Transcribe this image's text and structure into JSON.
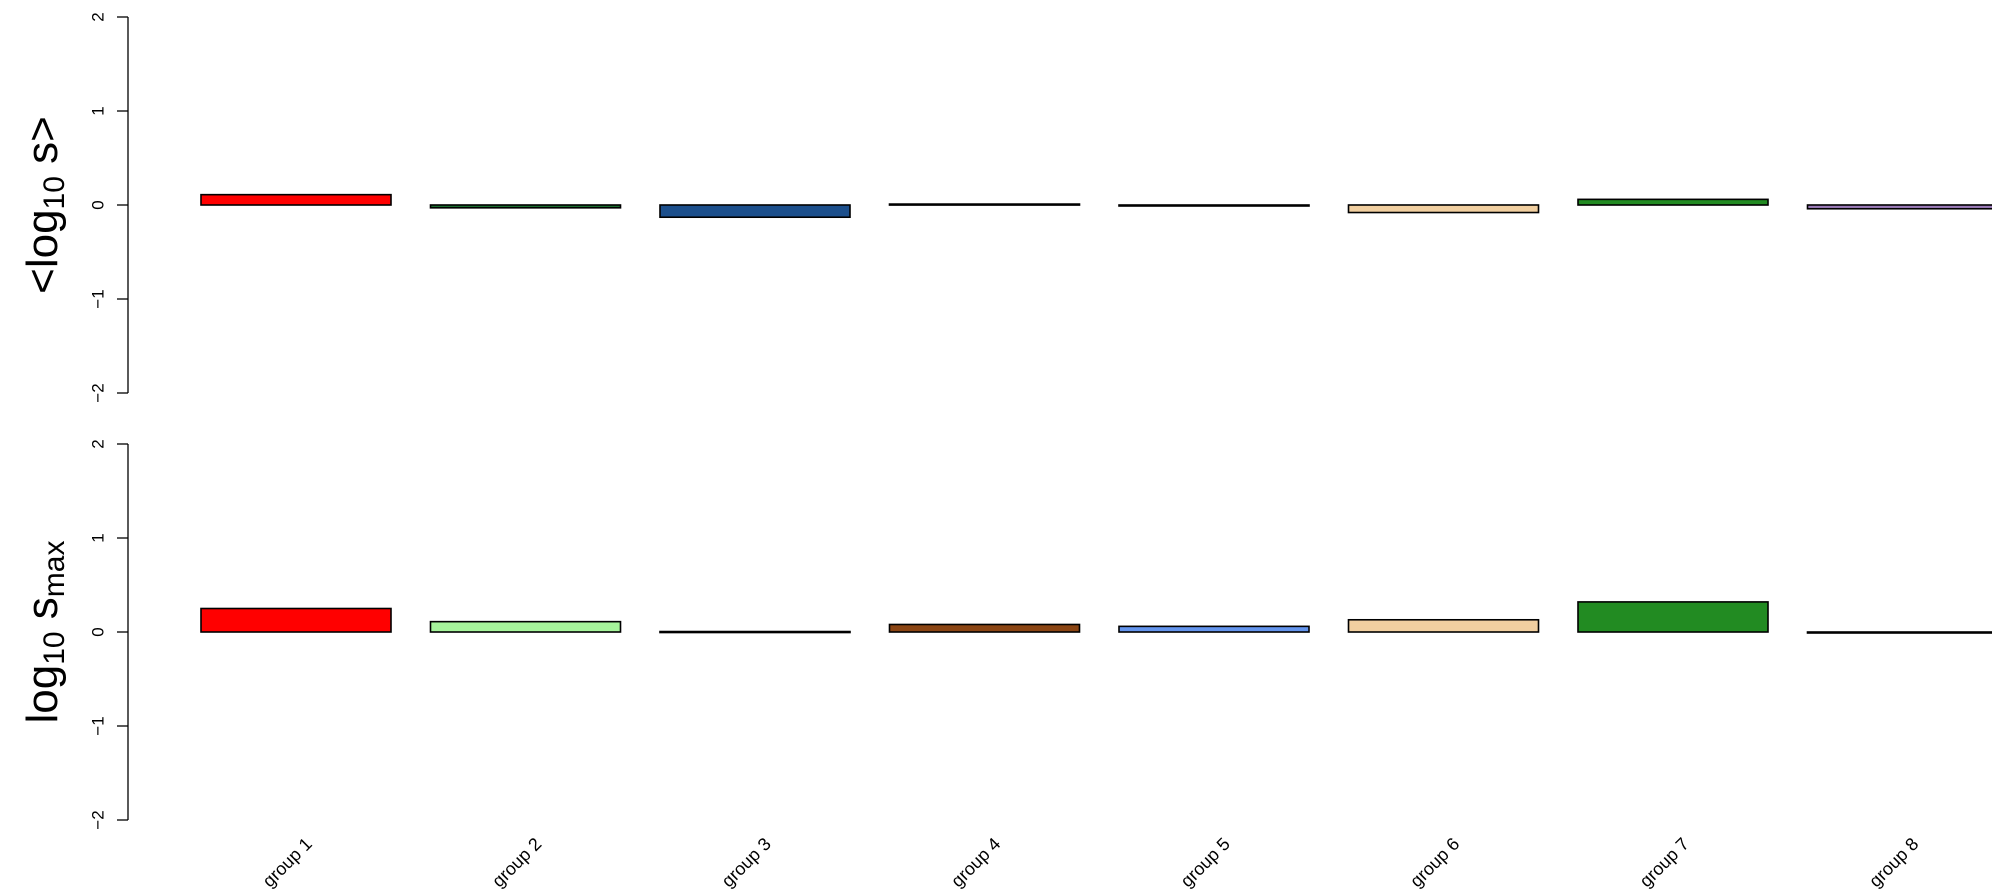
{
  "chart_data": [
    {
      "type": "bar",
      "panel": "top",
      "ylabel": {
        "prefix": "<log",
        "sub": "10",
        "suffix": " s>"
      },
      "ylim": [
        -2,
        2
      ],
      "yticks": [
        "-2",
        "-1",
        "0",
        "1",
        "2"
      ],
      "categories": [
        "group 1",
        "group 2",
        "group 3",
        "group 4",
        "group 5",
        "group 6",
        "group 7",
        "group 8"
      ],
      "values": [
        0.11,
        -0.03,
        -0.13,
        0.01,
        -0.01,
        -0.08,
        0.06,
        -0.04
      ],
      "colors": [
        "#ff0000",
        "#1a6e2e",
        "#1c4f8c",
        "#6b3a1e",
        "#3a6fd8",
        "#f1cfa0",
        "#228b22",
        "#9b7bb8"
      ],
      "grid": false
    },
    {
      "type": "bar",
      "panel": "bottom",
      "ylabel": {
        "prefix": "log",
        "sub": "10",
        "suffix": " s",
        "sub2": "max"
      },
      "ylim": [
        -2,
        2
      ],
      "yticks": [
        "-2",
        "-1",
        "0",
        "1",
        "2"
      ],
      "categories": [
        "group 1",
        "group 2",
        "group 3",
        "group 4",
        "group 5",
        "group 6",
        "group 7",
        "group 8"
      ],
      "values": [
        0.25,
        0.11,
        0.005,
        0.08,
        0.06,
        0.13,
        0.32,
        0.0
      ],
      "colors": [
        "#ff0000",
        "#a6f49b",
        "#1c4f8c",
        "#8b4513",
        "#6495ed",
        "#f1cfa0",
        "#228b22",
        "#9b7bb8"
      ],
      "grid": false
    }
  ]
}
